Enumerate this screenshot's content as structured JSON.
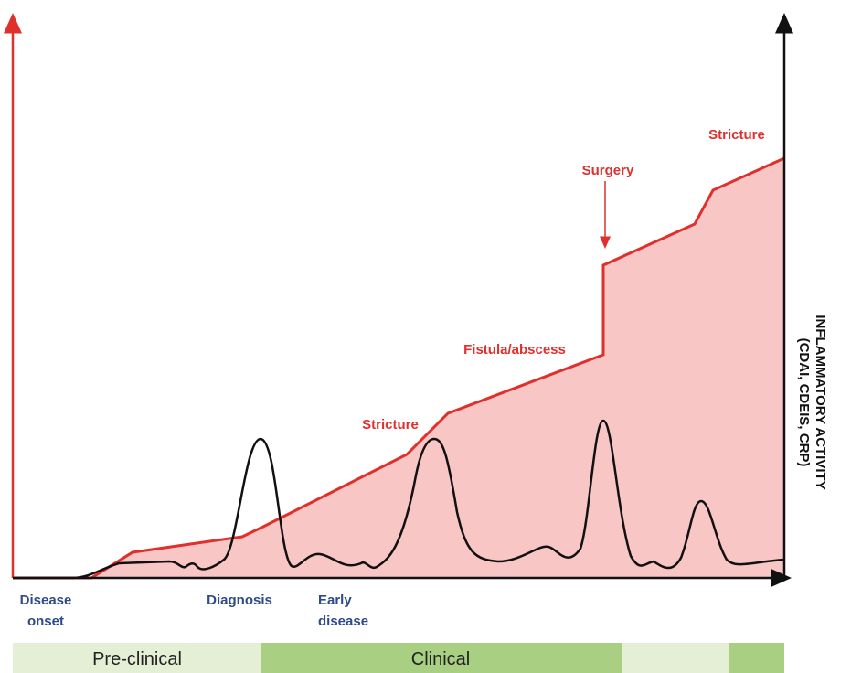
{
  "annotations": {
    "stricture_late": "Stricture",
    "surgery": "Surgery",
    "fistula": "Fistula/abscess",
    "stricture_early": "Stricture"
  },
  "x_labels": {
    "disease_onset": [
      "Disease",
      "onset"
    ],
    "diagnosis": "Diagnosis",
    "early_disease": [
      "Early",
      "disease"
    ]
  },
  "y_axis_label": [
    "INFLAMMATORY ACTIVITY",
    "(CDAI, CDEIS, CRP)"
  ],
  "phases": {
    "preclinical": "Pre-clinical",
    "clinical": "Clinical"
  }
}
